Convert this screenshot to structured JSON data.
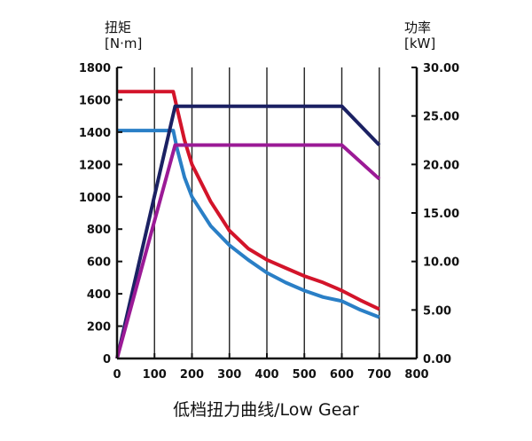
{
  "chart_data": {
    "type": "line",
    "title": "低档扭力曲线/Low Gear",
    "xlim": [
      0,
      800
    ],
    "x_ticks": [
      "0",
      "100",
      "200",
      "300",
      "400",
      "500",
      "600",
      "700",
      "800"
    ],
    "y_left": {
      "label_line1": "扭矩",
      "label_line2": "[N·m]",
      "lim": [
        0,
        1800
      ],
      "ticks": [
        "0",
        "200",
        "400",
        "600",
        "800",
        "1000",
        "1200",
        "1400",
        "1600",
        "1800"
      ]
    },
    "y_right": {
      "label_line1": "功率",
      "label_line2": "[kW]",
      "lim": [
        0,
        30
      ],
      "ticks": [
        "0.00",
        "5.00",
        "10.00",
        "15.00",
        "20.00",
        "25.00",
        "30.00"
      ]
    },
    "grid": true,
    "series": [
      {
        "axis": "left",
        "color": "#d3142a",
        "points": [
          [
            0,
            1650
          ],
          [
            150,
            1650
          ],
          [
            160,
            1550
          ],
          [
            180,
            1350
          ],
          [
            200,
            1200
          ],
          [
            250,
            970
          ],
          [
            300,
            790
          ],
          [
            350,
            680
          ],
          [
            400,
            610
          ],
          [
            450,
            560
          ],
          [
            500,
            510
          ],
          [
            550,
            470
          ],
          [
            600,
            420
          ],
          [
            650,
            360
          ],
          [
            700,
            305
          ]
        ]
      },
      {
        "axis": "left",
        "color": "#2a7fc6",
        "points": [
          [
            0,
            1410
          ],
          [
            150,
            1410
          ],
          [
            160,
            1300
          ],
          [
            180,
            1120
          ],
          [
            200,
            1000
          ],
          [
            250,
            820
          ],
          [
            300,
            700
          ],
          [
            350,
            610
          ],
          [
            400,
            530
          ],
          [
            450,
            470
          ],
          [
            500,
            420
          ],
          [
            550,
            380
          ],
          [
            600,
            355
          ],
          [
            650,
            300
          ],
          [
            700,
            255
          ]
        ]
      },
      {
        "axis": "right",
        "color": "#1b2163",
        "points": [
          [
            0,
            0
          ],
          [
            155,
            26.0
          ],
          [
            600,
            26.0
          ],
          [
            700,
            22.0
          ]
        ]
      },
      {
        "axis": "right",
        "color": "#9b1a96",
        "points": [
          [
            0,
            0
          ],
          [
            155,
            22.0
          ],
          [
            600,
            22.0
          ],
          [
            700,
            18.5
          ]
        ]
      }
    ]
  }
}
